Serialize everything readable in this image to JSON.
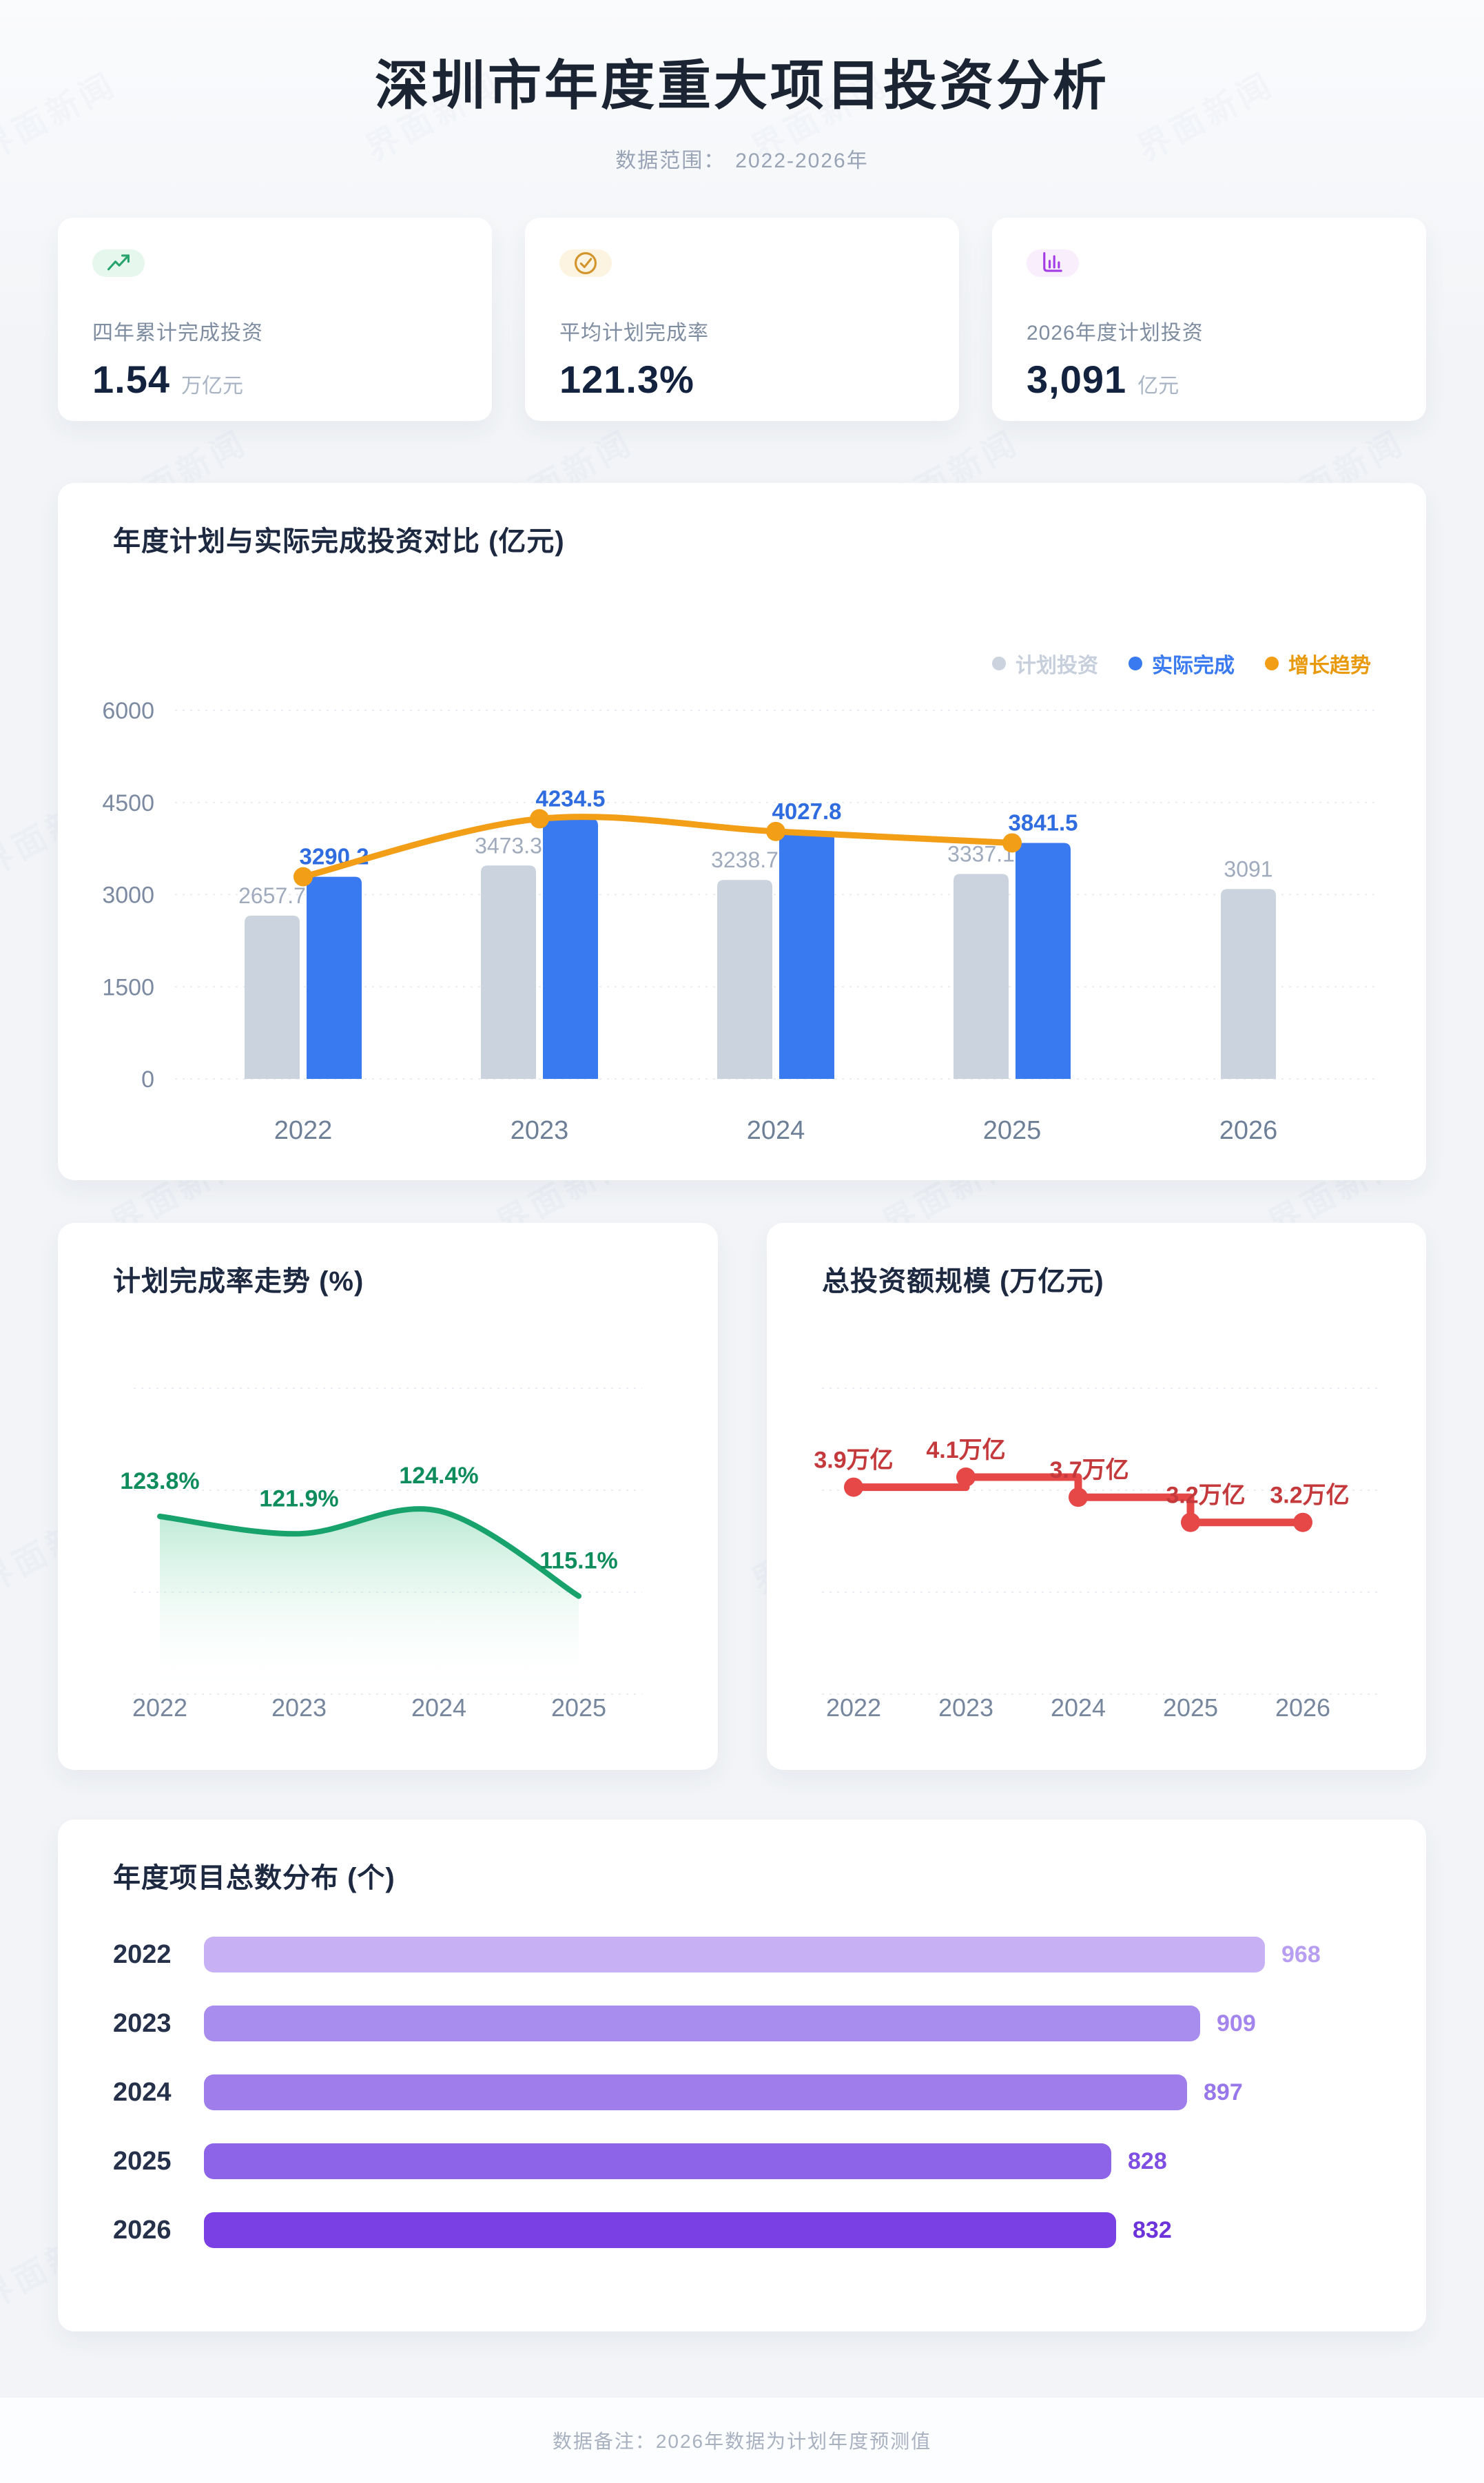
{
  "watermark": "界面新闻",
  "header": {
    "title": "深圳市年度重大项目投资分析",
    "subtitle_label": "数据范围：",
    "subtitle_value": "2022-2026年"
  },
  "stats": [
    {
      "icon": "trending-up-icon",
      "label": "四年累计完成投资",
      "value": "1.54",
      "unit": "万亿元",
      "accent": "#27a36d",
      "icon_bg": "#e6f7ee"
    },
    {
      "icon": "check-circle-icon",
      "label": "平均计划完成率",
      "value": "121.3%",
      "unit": "",
      "accent": "#d3942c",
      "icon_bg": "#fcf4e0"
    },
    {
      "icon": "bar-chart-icon",
      "label": "2026年度计划投资",
      "value": "3,091",
      "unit": "亿元",
      "accent": "#a33ce6",
      "icon_bg": "#f8eefc"
    }
  ],
  "chart_data": [
    {
      "id": "plan_vs_actual",
      "type": "bar",
      "title": "年度计划与实际完成投资对比 (亿元)",
      "categories": [
        "2022",
        "2023",
        "2024",
        "2025",
        "2026"
      ],
      "series": [
        {
          "name": "计划投资",
          "type": "bar",
          "color": "#cbd3df",
          "label_color": "#9fabbd",
          "legend_text": "#c6cfdb",
          "values": [
            2657.7,
            3473.3,
            3238.7,
            3337.1,
            3091
          ]
        },
        {
          "name": "实际完成",
          "type": "bar",
          "color": "#3a7af0",
          "label_color": "#2e6cdf",
          "legend_text": "#3a7af0",
          "values": [
            3290.2,
            4234.5,
            4027.8,
            3841.5,
            null
          ]
        },
        {
          "name": "增长趋势",
          "type": "line",
          "color": "#f29e17",
          "legend_text": "#e8990c",
          "values": [
            3290.2,
            4234.5,
            4027.8,
            3841.5,
            null
          ]
        }
      ],
      "ylim": [
        0,
        6000
      ],
      "yticks": [
        0,
        1500,
        3000,
        4500,
        6000
      ],
      "grid": "dashed",
      "legend_position": "top-right"
    },
    {
      "id": "completion_rate",
      "type": "area",
      "title": "计划完成率走势 (%)",
      "categories": [
        "2022",
        "2023",
        "2024",
        "2025"
      ],
      "values": [
        123.8,
        121.9,
        124.4,
        115.1
      ],
      "labels": [
        "123.8%",
        "121.9%",
        "124.4%",
        "115.1%"
      ],
      "color": "#17a36b",
      "label_color": "#0e8c5c",
      "area_gradient": [
        "rgba(82,200,148,0.40)",
        "rgba(255,255,255,0)"
      ],
      "ylim": [
        105,
        135
      ],
      "grid": "dashed"
    },
    {
      "id": "total_investment",
      "type": "line",
      "subtype": "step",
      "title": "总投资额规模 (万亿元)",
      "categories": [
        "2022",
        "2023",
        "2024",
        "2025",
        "2026"
      ],
      "values": [
        3.9,
        4.1,
        3.7,
        3.2,
        3.2
      ],
      "labels": [
        "3.9万亿",
        "4.1万亿",
        "3.7万亿",
        "3.2万亿",
        "3.2万亿"
      ],
      "color": "#e64747",
      "label_color": "#c43a3c",
      "ylim": [
        2.5,
        4.6
      ],
      "grid": "dashed"
    },
    {
      "id": "project_count",
      "type": "bar",
      "subtype": "horizontal",
      "title": "年度项目总数分布 (个)",
      "categories": [
        "2022",
        "2023",
        "2024",
        "2025",
        "2026"
      ],
      "values": [
        968,
        909,
        897,
        828,
        832
      ],
      "colors": [
        "#c7b0f4",
        "#a88cee",
        "#9f7eec",
        "#8d63e8",
        "#7b40e4"
      ],
      "value_colors": [
        "#b89ef1",
        "#a385ed",
        "#9777ea",
        "#7f4fe4",
        "#6d33da"
      ],
      "xmax": 968
    }
  ],
  "footer": {
    "note": "数据备注：2026年数据为计划年度预测值"
  }
}
